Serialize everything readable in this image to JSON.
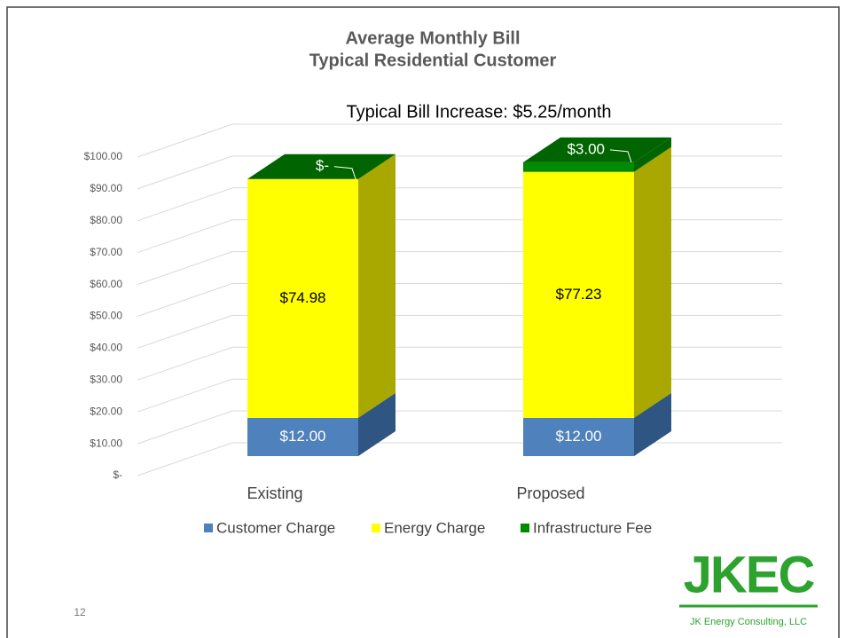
{
  "chart_data": {
    "type": "bar",
    "stacked": true,
    "title": "Average Monthly Bill",
    "subtitle": "Typical Residential Customer",
    "annotation": "Typical Bill Increase: $5.25/month",
    "categories": [
      "Existing",
      "Proposed"
    ],
    "series": [
      {
        "name": "Customer Charge",
        "color": "#4f81bd",
        "side_color": "#2f5683",
        "values": [
          12,
          12
        ],
        "value_labels": [
          "$12.00",
          "$12.00"
        ]
      },
      {
        "name": "Energy Charge",
        "color": "#ffff00",
        "side_color": "#a8a800",
        "values": [
          74.98,
          77.23
        ],
        "value_labels": [
          "$74.98",
          "$77.23"
        ]
      },
      {
        "name": "Infrastructure Fee",
        "color": "#008a00",
        "side_color": "#006400",
        "values": [
          0,
          3
        ],
        "value_labels": [
          "$-",
          "$3.00"
        ]
      }
    ],
    "ylim": [
      0,
      100
    ],
    "yticks": [
      {
        "value": 0,
        "label": "$-"
      },
      {
        "value": 10,
        "label": "$10.00"
      },
      {
        "value": 20,
        "label": "$20.00"
      },
      {
        "value": 30,
        "label": "$30.00"
      },
      {
        "value": 40,
        "label": "$40.00"
      },
      {
        "value": 50,
        "label": "$50.00"
      },
      {
        "value": 60,
        "label": "$60.00"
      },
      {
        "value": 70,
        "label": "$70.00"
      },
      {
        "value": 80,
        "label": "$80.00"
      },
      {
        "value": 90,
        "label": "$90.00"
      },
      {
        "value": 100,
        "label": "$100.00"
      }
    ],
    "grid": true,
    "legend": "bottom"
  },
  "slide_number": "12",
  "logo": {
    "mark": "JKEC",
    "company": "JK Energy Consulting, LLC"
  }
}
